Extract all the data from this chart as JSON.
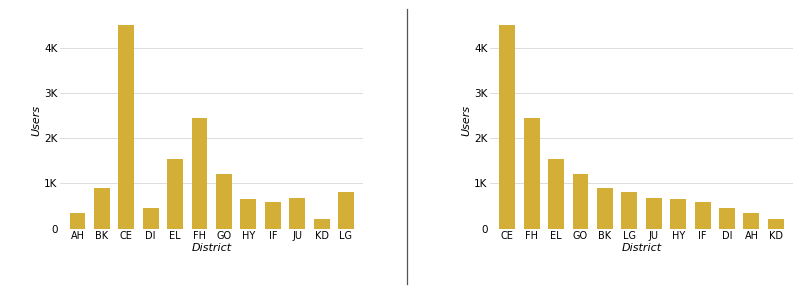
{
  "left_categories": [
    "AH",
    "BK",
    "CE",
    "DI",
    "EL",
    "FH",
    "GO",
    "HY",
    "IF",
    "JU",
    "KD",
    "LG"
  ],
  "left_values": [
    350,
    900,
    4500,
    450,
    1550,
    2450,
    1200,
    650,
    580,
    670,
    220,
    800
  ],
  "right_categories": [
    "CE",
    "FH",
    "EL",
    "GO",
    "BK",
    "LG",
    "JU",
    "HY",
    "IF",
    "DI",
    "AH",
    "KD"
  ],
  "right_values": [
    4500,
    2450,
    1550,
    1200,
    900,
    800,
    670,
    650,
    580,
    450,
    350,
    220
  ],
  "bar_color": "#D4AF37",
  "ylabel": "Users",
  "xlabel": "District",
  "xlabel_style": "italic",
  "ylabel_style": "italic",
  "ylim": [
    0,
    4800
  ],
  "yticks": [
    0,
    1000,
    2000,
    3000,
    4000
  ],
  "ytick_labels": [
    "0",
    "1K",
    "2K",
    "3K",
    "4K"
  ],
  "bg_color": "#ffffff",
  "grid_color": "#dddddd",
  "divider_color": "#555555"
}
